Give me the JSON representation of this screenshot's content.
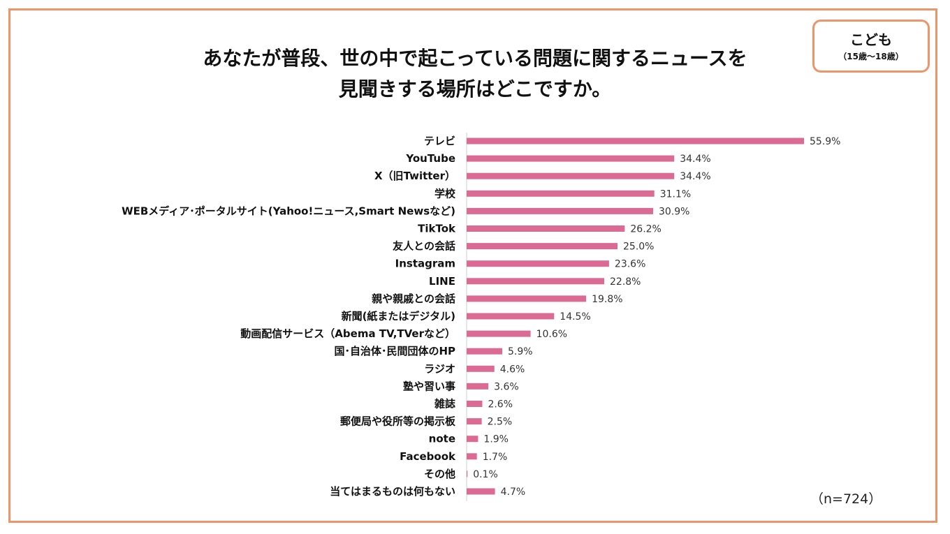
{
  "badge": {
    "main": "こども",
    "sub": "（15歳〜18歳）"
  },
  "sample_size": "（n=724）",
  "colors": {
    "bar": "#db6b93",
    "frame": "#ec956a",
    "axis": "#cfcfcf"
  },
  "chart_data": {
    "type": "bar",
    "orientation": "horizontal",
    "title_lines": [
      "あなたが普段、世の中で起こっている問題に関するニュースを",
      "見聞きする場所はどこですか。"
    ],
    "unit": "%",
    "xlim": [
      0,
      60
    ],
    "grid": false,
    "categories": [
      "テレビ",
      "YouTube",
      "X（旧Twitter）",
      "学校",
      "WEBメディア･ポータルサイト(Yahoo!ニュース,Smart Newsなど)",
      "TikTok",
      "友人との会話",
      "Instagram",
      "LINE",
      "親や親戚との会話",
      "新聞(紙またはデジタル)",
      "動画配信サービス（Abema TV,TVerなど）",
      "国･自治体･民間団体のHP",
      "ラジオ",
      "塾や習い事",
      "雑誌",
      "郵便局や役所等の掲示板",
      "note",
      "Facebook",
      "その他",
      "当てはまるものは何もない"
    ],
    "values": [
      55.9,
      34.4,
      34.4,
      31.1,
      30.9,
      26.2,
      25.0,
      23.6,
      22.8,
      19.8,
      14.5,
      10.6,
      5.9,
      4.6,
      3.6,
      2.6,
      2.5,
      1.9,
      1.7,
      0.1,
      4.7
    ],
    "value_labels": [
      "55.9%",
      "34.4%",
      "34.4%",
      "31.1%",
      "30.9%",
      "26.2%",
      "25.0%",
      "23.6%",
      "22.8%",
      "19.8%",
      "14.5%",
      "10.6%",
      "5.9%",
      "4.6%",
      "3.6%",
      "2.6%",
      "2.5%",
      "1.9%",
      "1.7%",
      "0.1%",
      "4.7%"
    ]
  }
}
